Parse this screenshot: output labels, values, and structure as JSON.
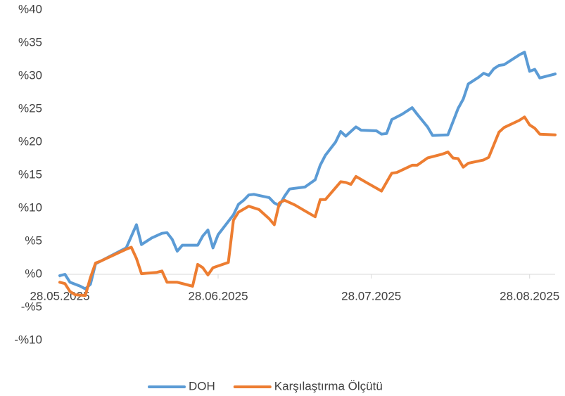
{
  "chart_data": {
    "type": "line",
    "xlim": [
      "28.05.2025",
      "02.09.2025"
    ],
    "xticks": [
      "28.05.2025",
      "28.06.2025",
      "28.07.2025",
      "28.08.2025"
    ],
    "ylim": [
      -10,
      40
    ],
    "yticks": [
      {
        "value": -10,
        "label": "-%10"
      },
      {
        "value": -5,
        "label": "-%5"
      },
      {
        "value": 0,
        "label": "%0"
      },
      {
        "value": 5,
        "label": "%5"
      },
      {
        "value": 10,
        "label": "%10"
      },
      {
        "value": 15,
        "label": "%15"
      },
      {
        "value": 20,
        "label": "%20"
      },
      {
        "value": 25,
        "label": "%25"
      },
      {
        "value": 30,
        "label": "%30"
      },
      {
        "value": 35,
        "label": "%35"
      },
      {
        "value": 40,
        "label": "%40"
      }
    ],
    "grid": false,
    "legend": "bottom",
    "series": [
      {
        "name": "DOH",
        "color": "#5b9bd5",
        "x": [
          "28.05.2025",
          "29.05.2025",
          "30.05.2025",
          "01.06.2025",
          "02.06.2025",
          "03.06.2025",
          "04.06.2025",
          "10.06.2025",
          "12.06.2025",
          "13.06.2025",
          "15.06.2025",
          "17.06.2025",
          "18.06.2025",
          "19.06.2025",
          "20.06.2025",
          "21.06.2025",
          "24.06.2025",
          "25.06.2025",
          "26.06.2025",
          "27.06.2025",
          "28.06.2025",
          "30.06.2025",
          "01.07.2025",
          "02.07.2025",
          "03.07.2025",
          "04.07.2025",
          "05.07.2025",
          "08.07.2025",
          "09.07.2025",
          "10.07.2025",
          "11.07.2025",
          "12.07.2025",
          "15.07.2025",
          "17.07.2025",
          "18.07.2025",
          "19.07.2025",
          "21.07.2025",
          "22.07.2025",
          "23.07.2025",
          "25.07.2025",
          "26.07.2025",
          "29.07.2025",
          "30.07.2025",
          "31.07.2025",
          "01.08.2025",
          "03.08.2025",
          "05.08.2025",
          "06.08.2025",
          "08.08.2025",
          "09.08.2025",
          "12.08.2025",
          "14.08.2025",
          "15.08.2025",
          "16.08.2025",
          "18.08.2025",
          "19.08.2025",
          "20.08.2025",
          "21.08.2025",
          "22.08.2025",
          "23.08.2025",
          "26.08.2025",
          "27.08.2025",
          "28.08.2025",
          "29.08.2025",
          "30.08.2025",
          "02.09.2025"
        ],
        "values": [
          -0.2,
          0,
          -1.2,
          -1.8,
          -2.2,
          -1.5,
          1.6,
          4.0,
          7.5,
          4.5,
          5.5,
          6.2,
          6.3,
          5.3,
          3.5,
          4.4,
          4.4,
          5.8,
          6.7,
          4.0,
          6.0,
          8.0,
          9.0,
          10.6,
          11.2,
          12.0,
          12.1,
          11.6,
          10.8,
          10.4,
          11.8,
          12.9,
          13.2,
          14.3,
          16.5,
          18.0,
          20.0,
          21.6,
          20.9,
          22.3,
          21.8,
          21.7,
          21.2,
          21.3,
          23.4,
          24.2,
          25.2,
          24.2,
          22.3,
          21.0,
          21.1,
          25.1,
          26.5,
          28.8,
          29.8,
          30.4,
          30.1,
          31.1,
          31.6,
          31.7,
          33.2,
          33.6,
          30.7,
          31.0,
          29.7,
          30.3
        ]
      },
      {
        "name": "Karşılaştırma Ölçütü",
        "color": "#ed7d31",
        "x": [
          "28.05.2025",
          "29.05.2025",
          "30.05.2025",
          "31.05.2025",
          "02.06.2025",
          "03.06.2025",
          "04.06.2025",
          "05.06.2025",
          "10.06.2025",
          "11.06.2025",
          "12.06.2025",
          "13.06.2025",
          "16.06.2025",
          "17.06.2025",
          "18.06.2025",
          "20.06.2025",
          "22.06.2025",
          "23.06.2025",
          "24.06.2025",
          "25.06.2025",
          "26.06.2025",
          "27.06.2025",
          "30.06.2025",
          "01.07.2025",
          "02.07.2025",
          "04.07.2025",
          "06.07.2025",
          "08.07.2025",
          "09.07.2025",
          "10.07.2025",
          "11.07.2025",
          "13.07.2025",
          "15.07.2025",
          "17.07.2025",
          "18.07.2025",
          "19.07.2025",
          "22.07.2025",
          "23.07.2025",
          "24.07.2025",
          "25.07.2025",
          "27.07.2025",
          "30.07.2025",
          "01.08.2025",
          "02.08.2025",
          "05.08.2025",
          "06.08.2025",
          "08.08.2025",
          "11.08.2025",
          "12.08.2025",
          "13.08.2025",
          "14.08.2025",
          "15.08.2025",
          "16.08.2025",
          "19.08.2025",
          "20.08.2025",
          "22.08.2025",
          "23.08.2025",
          "26.08.2025",
          "27.08.2025",
          "28.08.2025",
          "29.08.2025",
          "30.08.2025",
          "02.09.2025"
        ],
        "values": [
          -1.2,
          -1.4,
          -2.6,
          -3.1,
          -3.2,
          -0.5,
          1.7,
          2.0,
          3.8,
          4.1,
          2.4,
          0.1,
          0.3,
          0.5,
          -1.2,
          -1.2,
          -1.6,
          -1.8,
          1.5,
          1.0,
          -0.1,
          1.0,
          1.8,
          8.2,
          9.4,
          10.3,
          9.8,
          8.4,
          7.5,
          10.8,
          11.2,
          10.5,
          9.6,
          8.7,
          11.3,
          11.3,
          14.0,
          13.9,
          13.6,
          14.8,
          13.9,
          12.6,
          15.3,
          15.4,
          16.5,
          16.5,
          17.6,
          18.2,
          18.5,
          17.6,
          17.5,
          16.2,
          16.8,
          17.3,
          17.7,
          21.5,
          22.2,
          23.3,
          23.8,
          22.6,
          22.1,
          21.2,
          21.1
        ]
      }
    ]
  }
}
